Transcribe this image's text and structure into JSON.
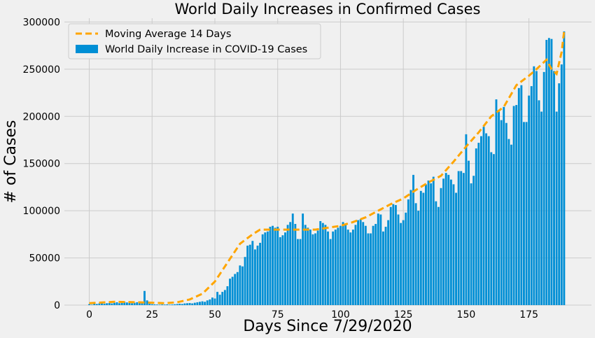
{
  "chart_data": {
    "type": "bar",
    "title": "World Daily Increases in Confirmed Cases",
    "xlabel": "Days Since 7/29/2020",
    "ylabel": "# of Cases",
    "xlim": [
      -9.9,
      199.9
    ],
    "ylim": [
      0,
      304000
    ],
    "xticks": [
      0,
      25,
      50,
      75,
      100,
      125,
      150,
      175
    ],
    "yticks": [
      0,
      50000,
      100000,
      150000,
      200000,
      250000,
      300000
    ],
    "grid": true,
    "legend": "upper left",
    "x": [
      0,
      1,
      2,
      3,
      4,
      5,
      6,
      7,
      8,
      9,
      10,
      11,
      12,
      13,
      14,
      15,
      16,
      17,
      18,
      19,
      20,
      21,
      22,
      23,
      24,
      25,
      26,
      27,
      28,
      29,
      30,
      31,
      32,
      33,
      34,
      35,
      36,
      37,
      38,
      39,
      40,
      41,
      42,
      43,
      44,
      45,
      46,
      47,
      48,
      49,
      50,
      51,
      52,
      53,
      54,
      55,
      56,
      57,
      58,
      59,
      60,
      61,
      62,
      63,
      64,
      65,
      66,
      67,
      68,
      69,
      70,
      71,
      72,
      73,
      74,
      75,
      76,
      77,
      78,
      79,
      80,
      81,
      82,
      83,
      84,
      85,
      86,
      87,
      88,
      89,
      90,
      91,
      92,
      93,
      94,
      95,
      96,
      97,
      98,
      99,
      100,
      101,
      102,
      103,
      104,
      105,
      106,
      107,
      108,
      109,
      110,
      111,
      112,
      113,
      114,
      115,
      116,
      117,
      118,
      119,
      120,
      121,
      122,
      123,
      124,
      125,
      126,
      127,
      128,
      129,
      130,
      131,
      132,
      133,
      134,
      135,
      136,
      137,
      138,
      139,
      140,
      141,
      142,
      143,
      144,
      145,
      146,
      147,
      148,
      149,
      150,
      151,
      152,
      153,
      154,
      155,
      156,
      157,
      158,
      159,
      160,
      161,
      162,
      163,
      164,
      165,
      166,
      167,
      168,
      169,
      170,
      171,
      172,
      173,
      174,
      175,
      176,
      177,
      178,
      179,
      180,
      181,
      182,
      183,
      184,
      185,
      186,
      187,
      188,
      189
    ],
    "series": [
      {
        "name": "Moving Average 14 Days",
        "type": "line",
        "color": "#ffa500",
        "x": [
          0,
          10,
          20,
          30,
          35,
          40,
          45,
          50,
          55,
          60,
          65,
          68,
          75,
          85,
          90,
          100,
          105,
          110,
          115,
          120,
          125,
          130,
          135,
          140,
          145,
          150,
          155,
          160,
          165,
          170,
          175,
          178,
          180,
          182,
          184,
          186,
          188,
          189
        ],
        "values": [
          2000,
          3500,
          3000,
          2000,
          3000,
          6000,
          12000,
          25000,
          45000,
          65000,
          75000,
          80000,
          80000,
          80000,
          80000,
          84000,
          88000,
          93000,
          100000,
          107000,
          113000,
          122000,
          130000,
          137000,
          152000,
          168000,
          183000,
          200000,
          210000,
          233000,
          243000,
          250000,
          255000,
          260000,
          250000,
          245000,
          268000,
          290000
        ]
      },
      {
        "name": "World Daily Increase in COVID-19 Cases",
        "type": "bar",
        "color": "#008fd5",
        "values": [
          1000,
          500,
          1500,
          1200,
          1800,
          2500,
          1500,
          2000,
          2200,
          1800,
          2500,
          3000,
          2000,
          2500,
          3500,
          2800,
          3000,
          2000,
          2500,
          3000,
          2000,
          2500,
          15000,
          5000,
          1500,
          1000,
          800,
          600,
          500,
          700,
          600,
          800,
          500,
          700,
          900,
          1200,
          1500,
          1200,
          1800,
          2000,
          2200,
          1800,
          2500,
          3000,
          3500,
          4000,
          3500,
          5000,
          6000,
          8000,
          7000,
          14000,
          11000,
          14000,
          16000,
          20000,
          28000,
          30000,
          33000,
          35000,
          42000,
          41000,
          51000,
          63000,
          64000,
          68000,
          59000,
          63000,
          66000,
          75000,
          77000,
          78000,
          83000,
          84000,
          82000,
          83000,
          72000,
          74000,
          77000,
          85000,
          88000,
          97000,
          86000,
          70000,
          70000,
          97000,
          85000,
          82000,
          80000,
          75000,
          76000,
          79000,
          89000,
          87000,
          85000,
          78000,
          70000,
          78000,
          80000,
          82000,
          84000,
          88000,
          85000,
          80000,
          77000,
          80000,
          85000,
          90000,
          91000,
          88000,
          84000,
          76000,
          76000,
          84000,
          86000,
          97000,
          96000,
          78000,
          83000,
          90000,
          104000,
          107000,
          106000,
          96000,
          87000,
          90000,
          98000,
          112000,
          122000,
          138000,
          108000,
          100000,
          121000,
          119000,
          128000,
          132000,
          129000,
          136000,
          110000,
          104000,
          124000,
          134000,
          140000,
          138000,
          133000,
          128000,
          119000,
          142000,
          142000,
          140000,
          181000,
          153000,
          129000,
          137000,
          166000,
          172000,
          179000,
          189000,
          182000,
          179000,
          162000,
          160000,
          218000,
          205000,
          196000,
          210000,
          193000,
          176000,
          170000,
          211000,
          212000,
          230000,
          233000,
          194000,
          194000,
          222000,
          232000,
          253000,
          248000,
          217000,
          205000,
          247000,
          281000,
          283000,
          282000,
          248000,
          205000,
          235000,
          255000,
          290000
        ]
      }
    ]
  }
}
